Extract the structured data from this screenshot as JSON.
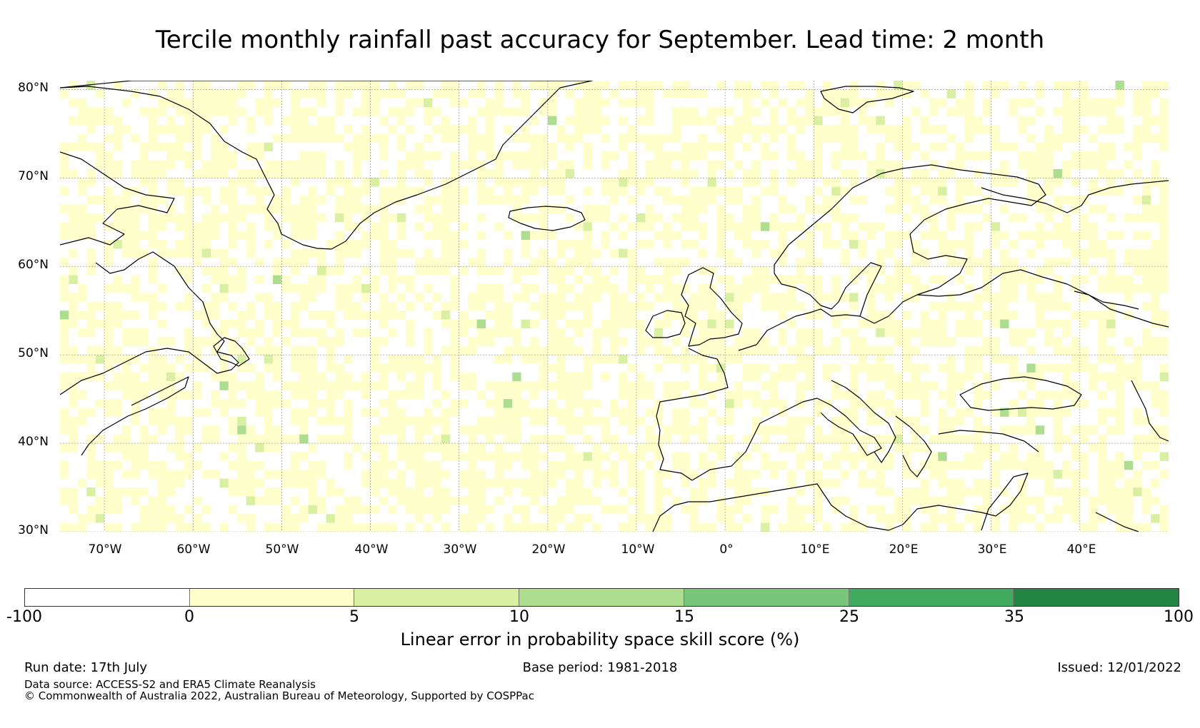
{
  "title": "Tercile monthly rainfall past accuracy for September. Lead time: 2 month",
  "map": {
    "lat_ticks": [
      "80°N",
      "70°N",
      "60°N",
      "50°N",
      "40°N",
      "30°N"
    ],
    "lon_ticks": [
      "70°W",
      "60°W",
      "50°W",
      "40°W",
      "30°W",
      "20°W",
      "10°W",
      "0°",
      "10°E",
      "20°E",
      "30°E",
      "40°E"
    ],
    "extent": {
      "lon_min": -75,
      "lon_max": 50,
      "lat_min": 30,
      "lat_max": 81
    },
    "dominant_value_range": "0-5",
    "coastline_color": "#000000",
    "gridline_color": "#888888"
  },
  "colorbar": {
    "label": "Linear error in probability space skill score (%)",
    "ticks": [
      "-100",
      "0",
      "5",
      "10",
      "15",
      "25",
      "35",
      "100"
    ],
    "bins": [
      {
        "from": -100,
        "to": 0,
        "color": "#ffffff"
      },
      {
        "from": 0,
        "to": 5,
        "color": "#ffffcc"
      },
      {
        "from": 5,
        "to": 10,
        "color": "#d9f0a3"
      },
      {
        "from": 10,
        "to": 15,
        "color": "#addd8e"
      },
      {
        "from": 15,
        "to": 25,
        "color": "#78c679"
      },
      {
        "from": 25,
        "to": 35,
        "color": "#41ab5d"
      },
      {
        "from": 35,
        "to": 100,
        "color": "#238443"
      }
    ]
  },
  "footer": {
    "run_date": "Run date: 17th July",
    "base_period": "Base period: 1981-2018",
    "issued": "Issued: 12/01/2022",
    "data_source": "Data source: ACCESS-S2 and ERA5 Climate Reanalysis",
    "copyright": "© Commonwealth of Australia 2022, Australian Bureau of Meteorology, Supported by COSPPac"
  }
}
